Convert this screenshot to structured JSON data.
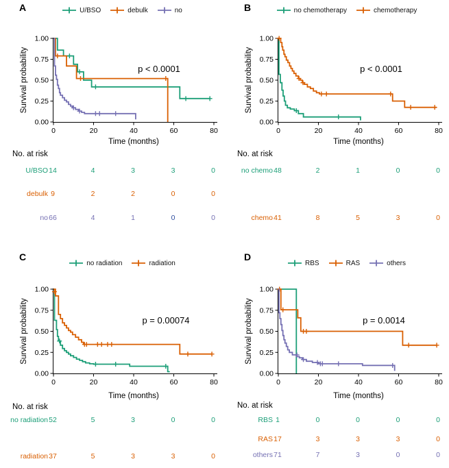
{
  "figure_background": "#ffffff",
  "palette": {
    "green": "#1B9E77",
    "orange": "#D95F02",
    "purple": "#7570B3",
    "dark_blue": "#2F4E9E",
    "text": "#000000"
  },
  "axis": {
    "xlabel": "Time (months)",
    "ylabel": "Survival probability",
    "x_ticks": [
      0,
      20,
      40,
      60,
      80
    ],
    "y_ticks": [
      0,
      0.25,
      0.5,
      0.75,
      1
    ],
    "y_tick_labels": [
      "0.00",
      "0.25",
      "0.50",
      "0.75",
      "1.00"
    ],
    "xlim": [
      0,
      80
    ],
    "ylim": [
      0,
      1
    ]
  },
  "risk_header": "No. at risk",
  "chart_data": [
    {
      "type": "line",
      "subtype": "kaplan-meier",
      "panel": "A",
      "p_label": "p < 0.0001",
      "legend": [
        {
          "label": "U/BSO",
          "color": "#1B9E77"
        },
        {
          "label": "debulk",
          "color": "#D95F02"
        },
        {
          "label": "no",
          "color": "#7570B3"
        }
      ],
      "series": [
        {
          "name": "U/BSO",
          "color": "#1B9E77",
          "start": 1,
          "steps": [
            [
              2,
              0.86
            ],
            [
              5,
              0.79
            ],
            [
              10,
              0.69
            ],
            [
              12,
              0.6
            ],
            [
              15,
              0.5
            ],
            [
              19,
              0.42
            ],
            [
              63,
              0.28
            ]
          ],
          "end_time": 78,
          "censors": [
            [
              8,
              0.79
            ],
            [
              13,
              0.6
            ],
            [
              21,
              0.42
            ],
            [
              66,
              0.28
            ],
            [
              78,
              0.28
            ]
          ]
        },
        {
          "name": "debulk",
          "color": "#D95F02",
          "start": 1,
          "steps": [
            [
              1,
              0.79
            ],
            [
              6.5,
              0.67
            ],
            [
              11.5,
              0.52
            ],
            [
              57,
              0
            ]
          ],
          "end_time": 57,
          "censors": [
            [
              2,
              0.79
            ],
            [
              13.5,
              0.52
            ],
            [
              56,
              0.52
            ]
          ]
        },
        {
          "name": "no",
          "color": "#7570B3",
          "start": 1,
          "steps": [
            [
              0.5,
              0.67
            ],
            [
              1,
              0.56
            ],
            [
              1.5,
              0.51
            ],
            [
              2,
              0.44
            ],
            [
              2.5,
              0.4
            ],
            [
              3,
              0.35
            ],
            [
              3.5,
              0.32
            ],
            [
              4.5,
              0.29
            ],
            [
              5.5,
              0.26
            ],
            [
              6.5,
              0.24
            ],
            [
              7.5,
              0.21
            ],
            [
              8.5,
              0.19
            ],
            [
              9.5,
              0.17
            ],
            [
              11,
              0.15
            ],
            [
              12.5,
              0.13
            ],
            [
              14,
              0.115
            ],
            [
              15.5,
              0.1
            ],
            [
              41,
              0.03
            ]
          ],
          "end_time": 41,
          "censors": [
            [
              10,
              0.17
            ],
            [
              13,
              0.13
            ],
            [
              21,
              0.1
            ],
            [
              23,
              0.1
            ],
            [
              31,
              0.1
            ]
          ]
        }
      ],
      "at_risk": [
        {
          "label": "U/BSO",
          "color": "#1B9E77",
          "values": [
            "14",
            "4",
            "3",
            "3",
            "0"
          ]
        },
        {
          "label": "debulk",
          "color": "#D95F02",
          "values": [
            "9",
            "2",
            "2",
            "0",
            "0"
          ]
        },
        {
          "label": "no",
          "color": "#7570B3",
          "values": [
            "66",
            "4",
            "1",
            "0",
            "0"
          ],
          "value_colors": {
            "3": "#2F4E9E"
          }
        }
      ]
    },
    {
      "type": "line",
      "subtype": "kaplan-meier",
      "panel": "B",
      "p_label": "p < 0.0001",
      "legend": [
        {
          "label": "no chemotherapy",
          "color": "#1B9E77"
        },
        {
          "label": "chemotherapy",
          "color": "#D95F02"
        }
      ],
      "series": [
        {
          "name": "no chemotherapy",
          "color": "#1B9E77",
          "start": 1,
          "steps": [
            [
              0.3,
              0.57
            ],
            [
              1,
              0.47
            ],
            [
              1.8,
              0.38
            ],
            [
              2.4,
              0.31
            ],
            [
              3,
              0.25
            ],
            [
              3.6,
              0.2
            ],
            [
              4.5,
              0.17
            ],
            [
              6,
              0.155
            ],
            [
              8,
              0.135
            ],
            [
              10,
              0.1
            ],
            [
              12.5,
              0.06
            ],
            [
              41,
              0.02
            ]
          ],
          "end_time": 41,
          "censors": [
            [
              9,
              0.135
            ],
            [
              30,
              0.06
            ]
          ]
        },
        {
          "name": "chemotherapy",
          "color": "#D95F02",
          "start": 1,
          "steps": [
            [
              1.2,
              0.95
            ],
            [
              1.8,
              0.9
            ],
            [
              2.2,
              0.86
            ],
            [
              2.8,
              0.81
            ],
            [
              3.3,
              0.78
            ],
            [
              4,
              0.74
            ],
            [
              4.8,
              0.71
            ],
            [
              5.6,
              0.67
            ],
            [
              6.3,
              0.64
            ],
            [
              7,
              0.61
            ],
            [
              7.8,
              0.58
            ],
            [
              8.8,
              0.55
            ],
            [
              10,
              0.52
            ],
            [
              11,
              0.5
            ],
            [
              12,
              0.47
            ],
            [
              13,
              0.45
            ],
            [
              14.5,
              0.42
            ],
            [
              16,
              0.4
            ],
            [
              17.5,
              0.37
            ],
            [
              19,
              0.35
            ],
            [
              20.5,
              0.335
            ],
            [
              57,
              0.25
            ],
            [
              63,
              0.175
            ]
          ],
          "end_time": 79,
          "censors": [
            [
              0.4,
              1
            ],
            [
              10.3,
              0.52
            ],
            [
              12.3,
              0.47
            ],
            [
              21.5,
              0.335
            ],
            [
              24,
              0.335
            ],
            [
              56,
              0.335
            ],
            [
              66,
              0.175
            ],
            [
              78,
              0.175
            ]
          ]
        }
      ],
      "at_risk": [
        {
          "label": "no chemo",
          "color": "#1B9E77",
          "values": [
            "48",
            "2",
            "1",
            "0",
            "0"
          ]
        },
        {
          "label": "chemo",
          "color": "#D95F02",
          "values": [
            "41",
            "8",
            "5",
            "3",
            "0"
          ]
        }
      ]
    },
    {
      "type": "line",
      "subtype": "kaplan-meier",
      "panel": "C",
      "p_label": "p = 0.00074",
      "legend": [
        {
          "label": "no radiation",
          "color": "#1B9E77"
        },
        {
          "label": "radiation",
          "color": "#D95F02"
        }
      ],
      "series": [
        {
          "name": "no radiation",
          "color": "#1B9E77",
          "start": 1,
          "steps": [
            [
              0.5,
              0.63
            ],
            [
              1.5,
              0.52
            ],
            [
              2,
              0.44
            ],
            [
              2.5,
              0.385
            ],
            [
              3.5,
              0.335
            ],
            [
              4.5,
              0.295
            ],
            [
              5.5,
              0.27
            ],
            [
              6.5,
              0.25
            ],
            [
              7.5,
              0.23
            ],
            [
              8.5,
              0.21
            ],
            [
              10,
              0.19
            ],
            [
              11.5,
              0.17
            ],
            [
              13,
              0.155
            ],
            [
              14.5,
              0.14
            ],
            [
              16,
              0.125
            ],
            [
              18,
              0.115
            ],
            [
              20,
              0.11
            ],
            [
              38,
              0.085
            ],
            [
              57,
              0.02
            ]
          ],
          "end_time": 58,
          "censors": [
            [
              3,
              0.385
            ],
            [
              21,
              0.11
            ],
            [
              31,
              0.11
            ],
            [
              56,
              0.085
            ]
          ]
        },
        {
          "name": "radiation",
          "color": "#D95F02",
          "start": 1,
          "steps": [
            [
              1,
              0.92
            ],
            [
              2.5,
              0.7
            ],
            [
              3.5,
              0.65
            ],
            [
              4.5,
              0.6
            ],
            [
              5.5,
              0.57
            ],
            [
              6.5,
              0.54
            ],
            [
              7.5,
              0.51
            ],
            [
              8.5,
              0.49
            ],
            [
              9.5,
              0.46
            ],
            [
              11,
              0.43
            ],
            [
              12.5,
              0.4
            ],
            [
              14,
              0.37
            ],
            [
              15,
              0.345
            ],
            [
              63,
              0.23
            ]
          ],
          "end_time": 79,
          "censors": [
            [
              0.5,
              0.97
            ],
            [
              15.5,
              0.345
            ],
            [
              16.5,
              0.345
            ],
            [
              22,
              0.345
            ],
            [
              24,
              0.345
            ],
            [
              27,
              0.345
            ],
            [
              29,
              0.345
            ],
            [
              67,
              0.23
            ],
            [
              79,
              0.23
            ]
          ]
        }
      ],
      "at_risk": [
        {
          "label": "no radiation",
          "color": "#1B9E77",
          "values": [
            "52",
            "5",
            "3",
            "0",
            "0"
          ]
        },
        {
          "label": "radiation",
          "color": "#D95F02",
          "values": [
            "37",
            "5",
            "3",
            "3",
            "0"
          ]
        }
      ]
    },
    {
      "type": "line",
      "subtype": "kaplan-meier",
      "panel": "D",
      "p_label": "p = 0.0014",
      "legend": [
        {
          "label": "RBS",
          "color": "#1B9E77"
        },
        {
          "label": "RAS",
          "color": "#D95F02"
        },
        {
          "label": "others",
          "color": "#7570B3"
        }
      ],
      "series": [
        {
          "name": "RBS",
          "color": "#1B9E77",
          "start": 1,
          "steps": [
            [
              9,
              0
            ]
          ],
          "end_time": 9,
          "censors": []
        },
        {
          "name": "RAS",
          "color": "#D95F02",
          "start": 1,
          "steps": [
            [
              1.3,
              0.755
            ],
            [
              9.7,
              0.66
            ],
            [
              11.2,
              0.5
            ],
            [
              62,
              0.335
            ]
          ],
          "end_time": 79,
          "censors": [
            [
              0.6,
              1
            ],
            [
              2.3,
              0.755
            ],
            [
              12.5,
              0.5
            ],
            [
              14,
              0.5
            ],
            [
              65,
              0.335
            ],
            [
              79,
              0.335
            ]
          ]
        },
        {
          "name": "others",
          "color": "#7570B3",
          "start": 1,
          "steps": [
            [
              0.3,
              0.72
            ],
            [
              0.8,
              0.65
            ],
            [
              1.3,
              0.58
            ],
            [
              1.8,
              0.51
            ],
            [
              2.3,
              0.45
            ],
            [
              2.8,
              0.4
            ],
            [
              3.3,
              0.36
            ],
            [
              4,
              0.32
            ],
            [
              4.7,
              0.28
            ],
            [
              5.5,
              0.25
            ],
            [
              7,
              0.22
            ],
            [
              9,
              0.2
            ],
            [
              10.5,
              0.185
            ],
            [
              12,
              0.165
            ],
            [
              14,
              0.145
            ],
            [
              17,
              0.13
            ],
            [
              20,
              0.115
            ],
            [
              42,
              0.095
            ],
            [
              58,
              0.03
            ]
          ],
          "end_time": 58,
          "censors": [
            [
              9.3,
              0.22
            ],
            [
              12.5,
              0.165
            ],
            [
              19.5,
              0.13
            ],
            [
              21,
              0.115
            ],
            [
              22,
              0.115
            ],
            [
              30,
              0.115
            ],
            [
              57,
              0.095
            ]
          ]
        }
      ],
      "at_risk": [
        {
          "label": "RBS",
          "color": "#1B9E77",
          "values": [
            "1",
            "0",
            "0",
            "0",
            "0"
          ]
        },
        {
          "label": "RAS",
          "color": "#D95F02",
          "values": [
            "17",
            "3",
            "3",
            "3",
            "0"
          ]
        },
        {
          "label": "others",
          "color": "#7570B3",
          "values": [
            "71",
            "7",
            "3",
            "0",
            "0"
          ]
        }
      ]
    }
  ]
}
